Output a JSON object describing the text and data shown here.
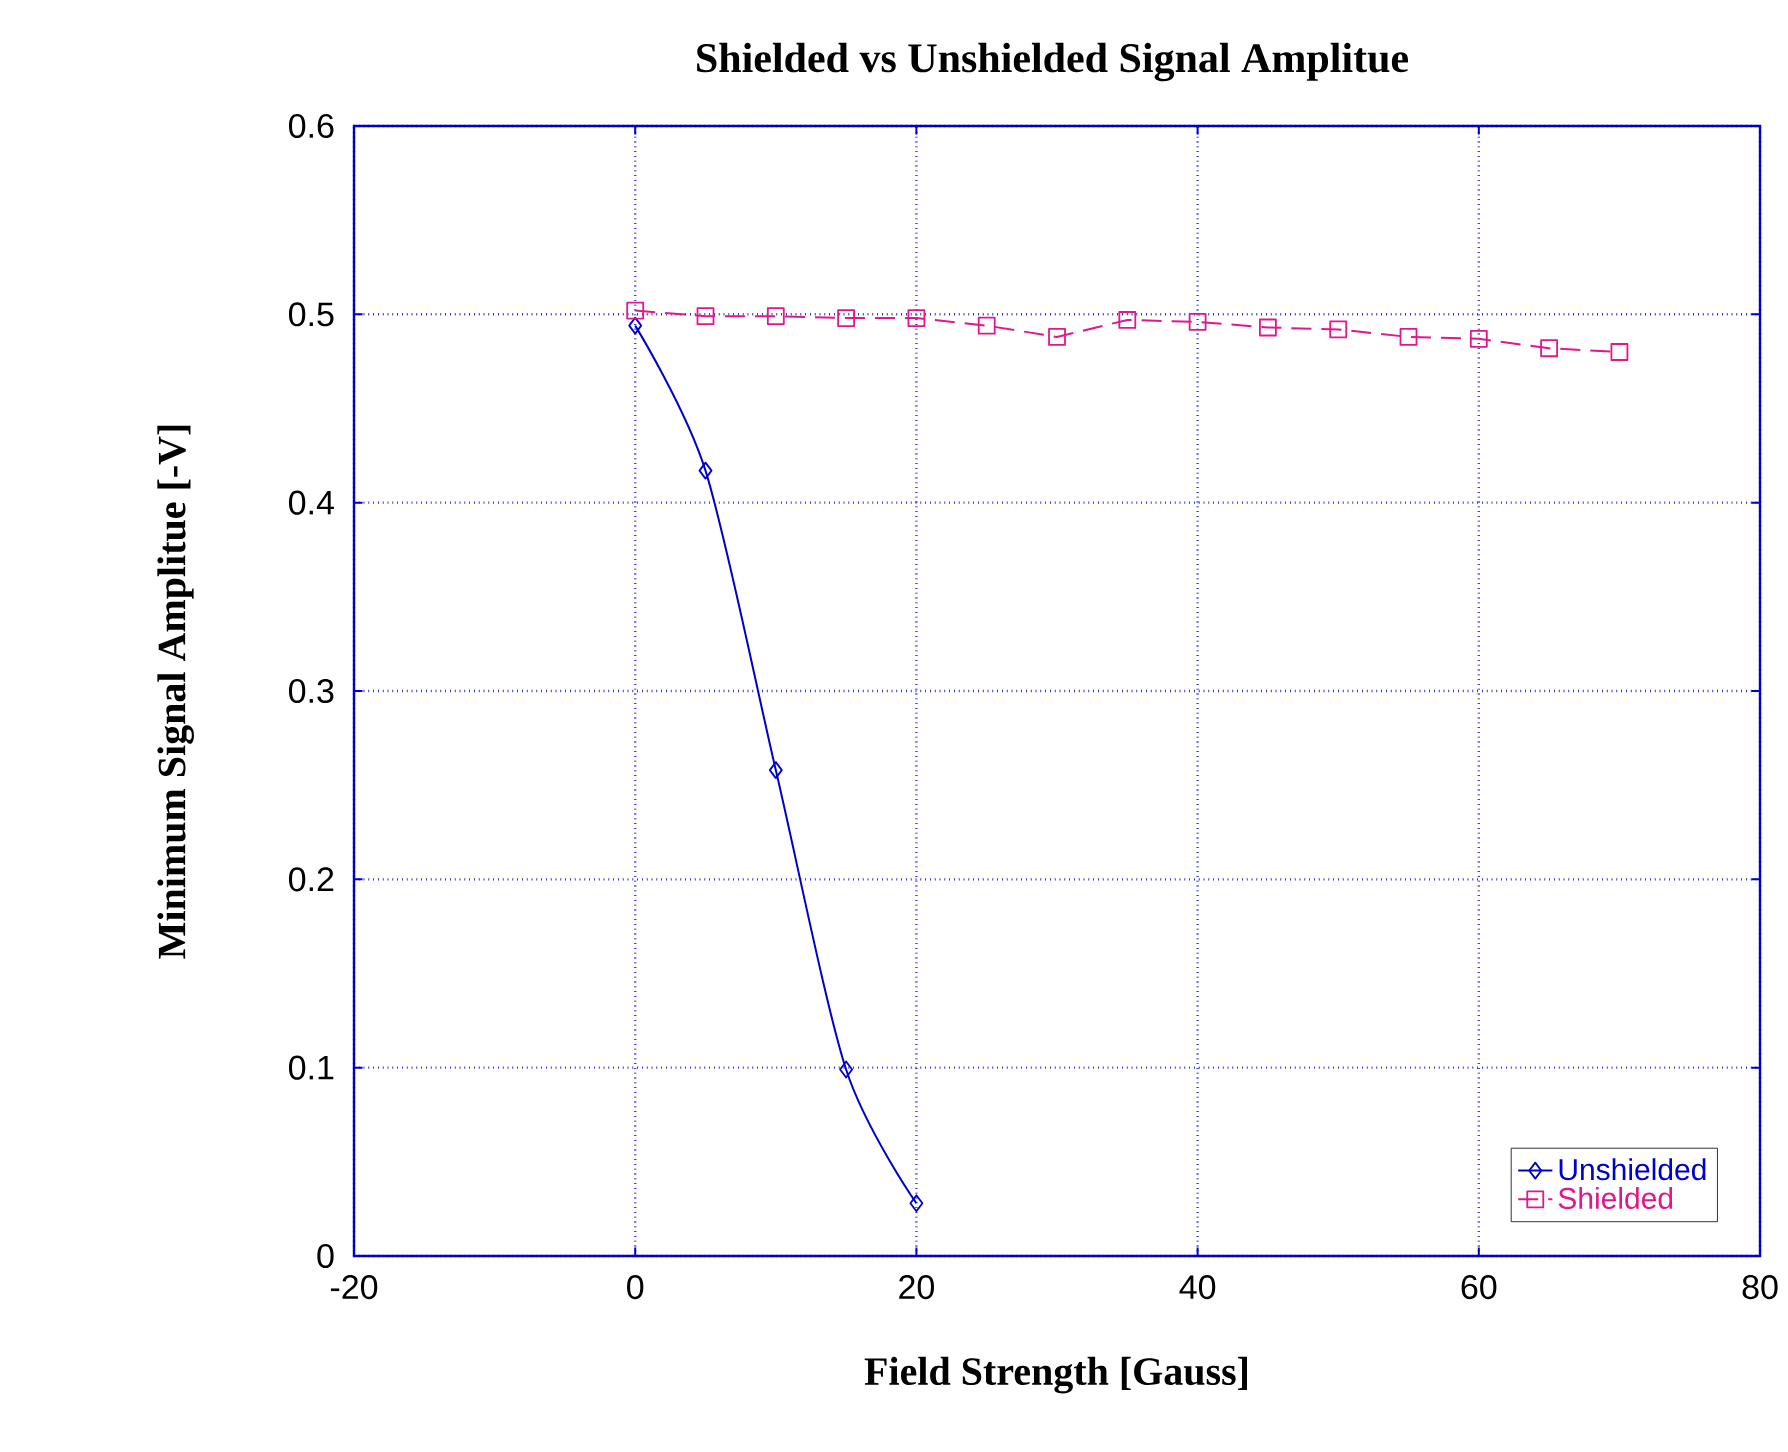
{
  "chart_data": {
    "type": "line",
    "title": "Shielded vs Unshielded Signal Amplitue",
    "xlabel": "Field Strength [Gauss]",
    "ylabel": "Minimum Signal Amplitue [-V]",
    "xlim": [
      -20,
      80
    ],
    "xticks": [
      -20,
      0,
      20,
      40,
      60,
      80
    ],
    "ylim": [
      0,
      0.6
    ],
    "yticks": [
      0,
      0.1,
      0.2,
      0.3,
      0.4,
      0.5,
      0.6
    ],
    "grid": true,
    "legend": "bottom right",
    "series": [
      {
        "name": "Unshielded",
        "color": "#0000cc",
        "marker": "diamond",
        "line_style": "solid",
        "x": [
          0,
          5,
          10,
          15,
          20
        ],
        "values": [
          0.494,
          0.417,
          0.258,
          0.099,
          0.028
        ]
      },
      {
        "name": "Shielded",
        "color": "#e0188c",
        "marker": "square",
        "line_style": "dashed",
        "x": [
          0,
          5,
          10,
          15,
          20,
          25,
          30,
          35,
          40,
          45,
          50,
          55,
          60,
          65,
          70
        ],
        "values": [
          0.502,
          0.499,
          0.499,
          0.498,
          0.498,
          0.494,
          0.488,
          0.497,
          0.496,
          0.493,
          0.492,
          0.488,
          0.487,
          0.482,
          0.48
        ]
      }
    ]
  }
}
